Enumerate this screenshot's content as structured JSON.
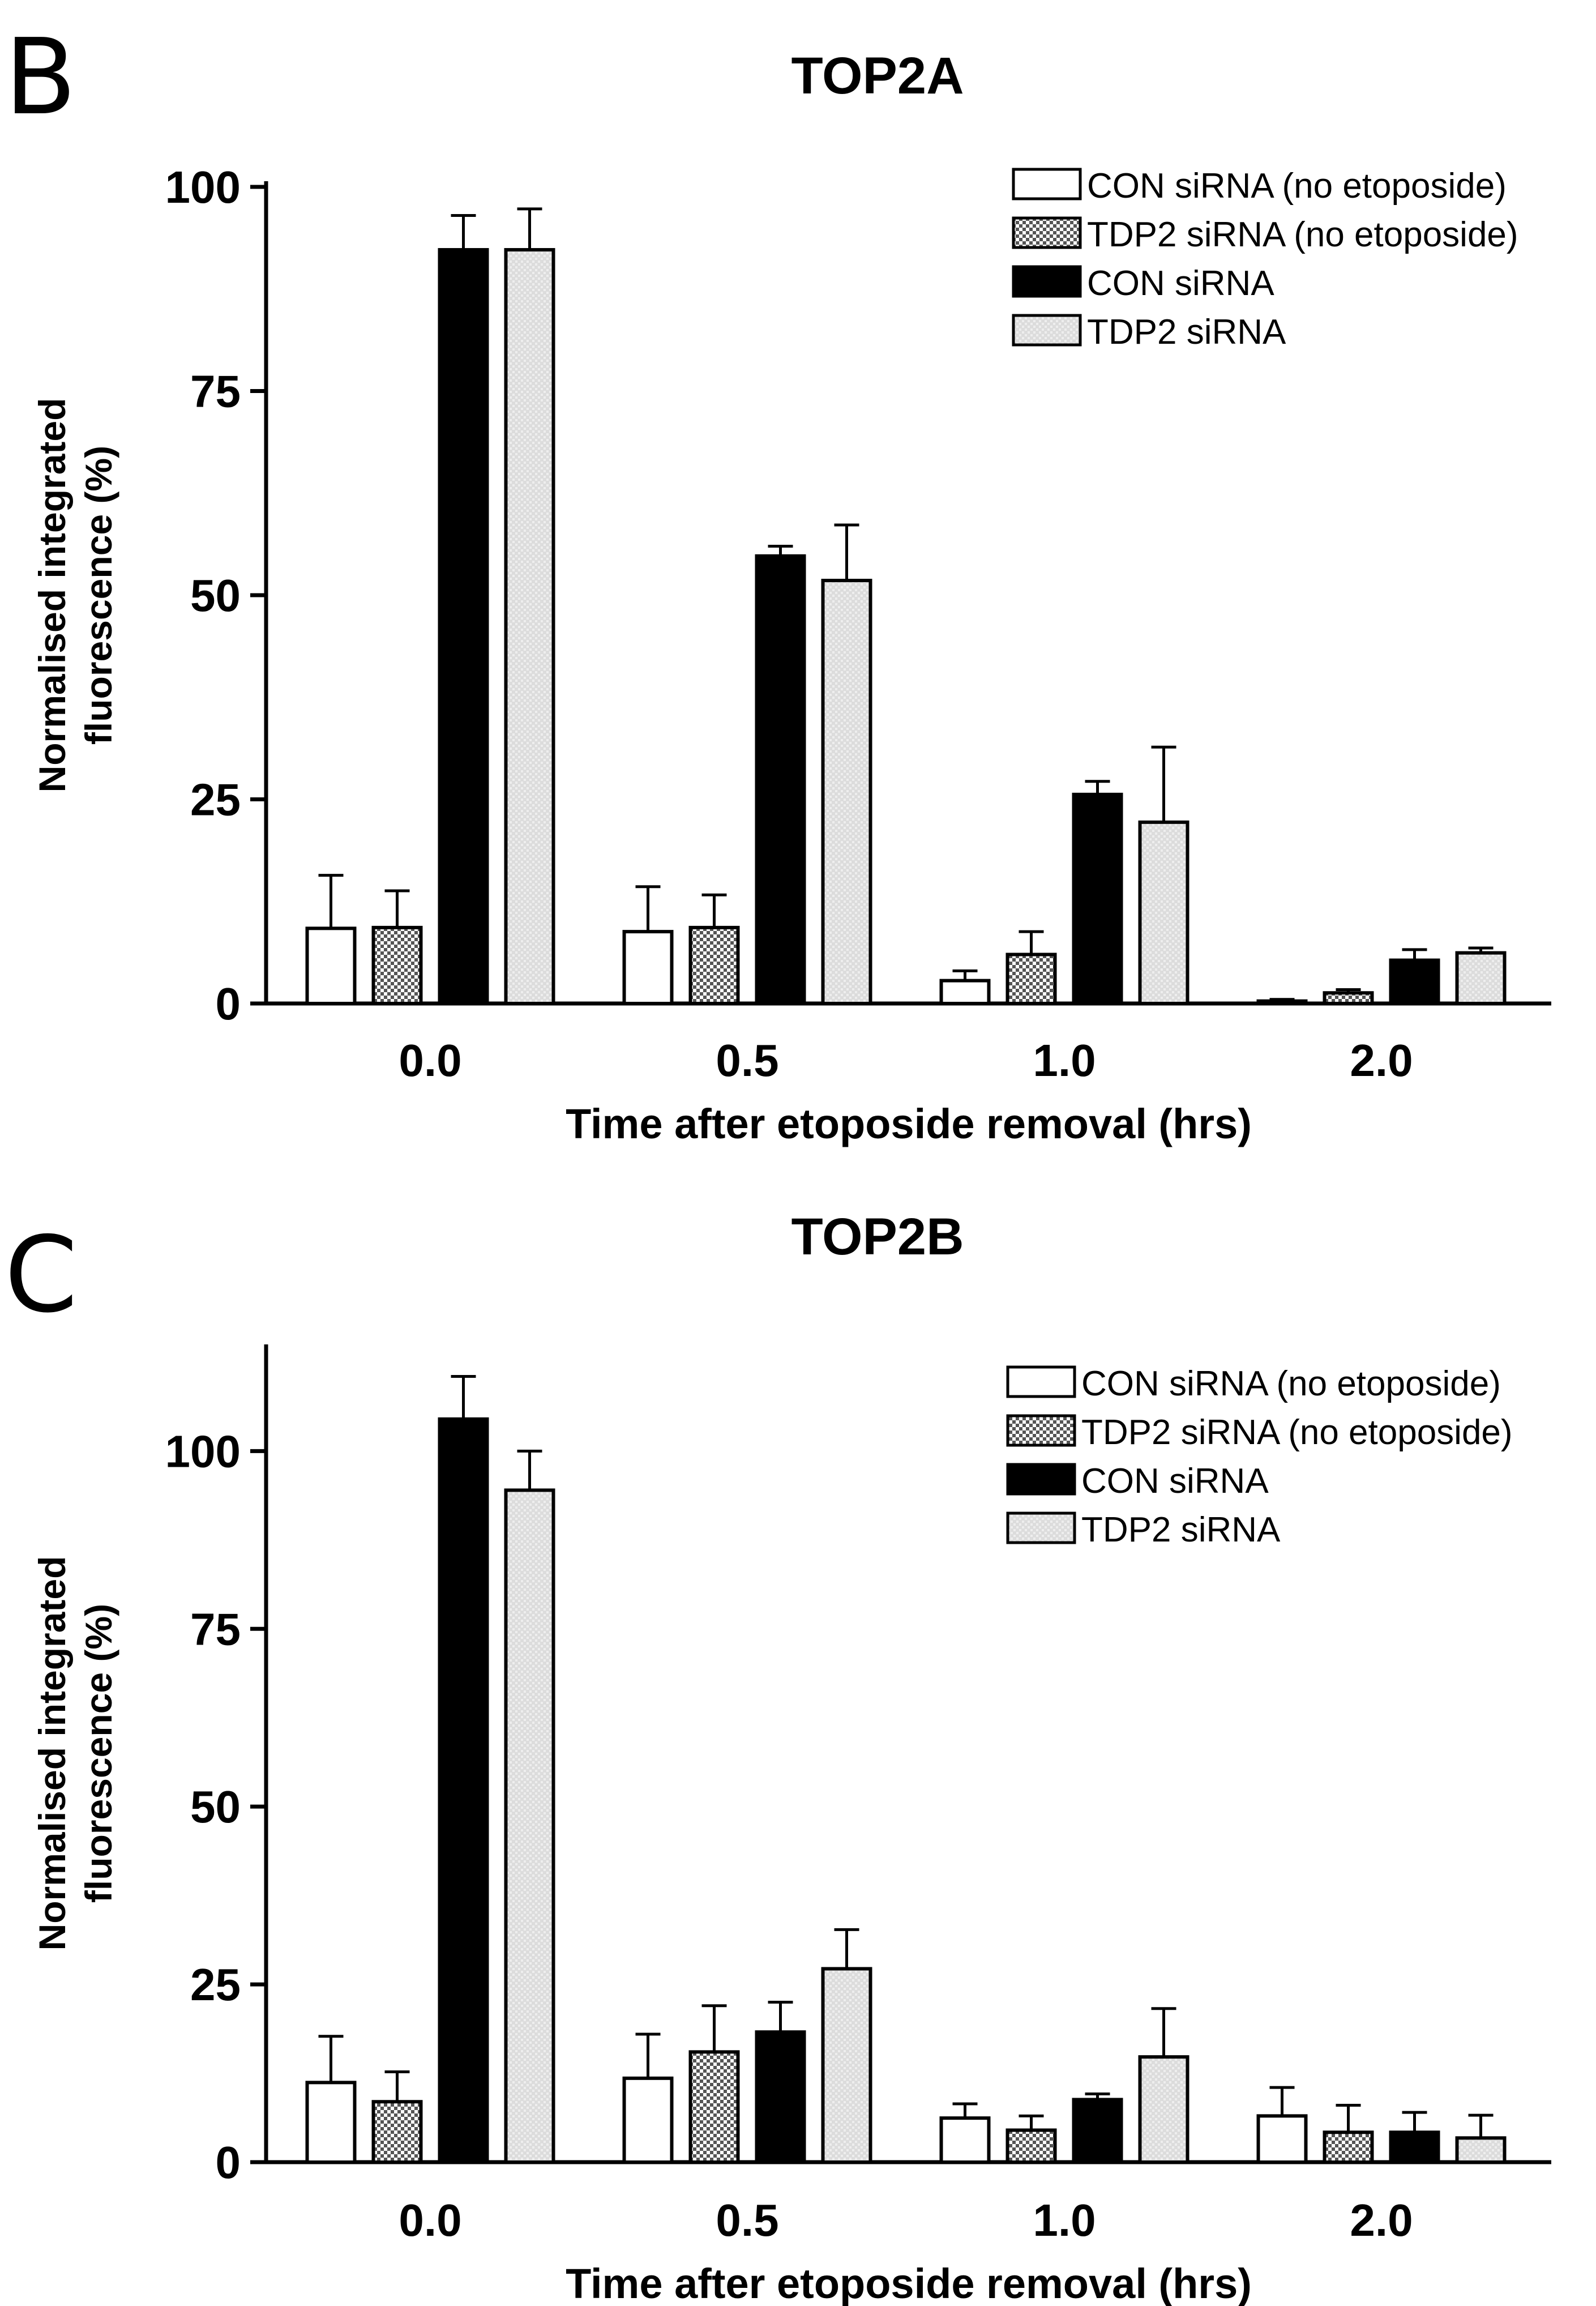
{
  "panels": [
    {
      "letter": "B"
    },
    {
      "letter": "C"
    }
  ],
  "colors": {
    "con_no_etoposide": "#ffffff",
    "tdp2_no_etoposide": "#b0b0b0",
    "con_sirna": "#000000",
    "tdp2_sirna": "#dedede",
    "stroke": "#000000"
  },
  "chart_data": [
    {
      "type": "bar",
      "title": "TOP2A",
      "xlabel": "Time after etoposide removal (hrs)",
      "ylabel_lines": [
        "Normalised integrated",
        "fluorescence (%)"
      ],
      "ylim": [
        0,
        100
      ],
      "yticks": [
        0,
        25,
        50,
        75,
        100
      ],
      "categories": [
        "0.0",
        "0.5",
        "1.0",
        "2.0"
      ],
      "legend_position": "top-right",
      "series": [
        {
          "name": "CON siRNA (no etoposide)",
          "pattern": "white",
          "values": [
            9.2,
            8.8,
            2.8,
            0.3
          ],
          "errors": [
            6.5,
            5.5,
            1.2,
            0.2
          ]
        },
        {
          "name": "TDP2 siRNA (no etoposide)",
          "pattern": "checker",
          "values": [
            9.3,
            9.3,
            6.0,
            1.3
          ],
          "errors": [
            4.5,
            4.0,
            2.8,
            0.4
          ]
        },
        {
          "name": "CON siRNA",
          "pattern": "black",
          "values": [
            92.3,
            54.8,
            25.6,
            5.3
          ],
          "errors": [
            4.2,
            1.2,
            1.6,
            1.3
          ]
        },
        {
          "name": "TDP2 siRNA",
          "pattern": "light",
          "values": [
            92.3,
            51.8,
            22.2,
            6.2
          ],
          "errors": [
            5.0,
            6.8,
            9.2,
            0.6
          ]
        }
      ]
    },
    {
      "type": "bar",
      "title": "TOP2B",
      "xlabel": "Time after etoposide removal (hrs)",
      "ylabel_lines": [
        "Normalised integrated",
        "fluorescence (%)"
      ],
      "ylim": [
        0,
        115
      ],
      "yticks": [
        0,
        25,
        50,
        75,
        100
      ],
      "categories": [
        "0.0",
        "0.5",
        "1.0",
        "2.0"
      ],
      "legend_position": "top-right",
      "series": [
        {
          "name": "CON siRNA (no etoposide)",
          "pattern": "white",
          "values": [
            11.2,
            11.8,
            6.2,
            6.5
          ],
          "errors": [
            6.5,
            6.2,
            2.0,
            4.0
          ]
        },
        {
          "name": "TDP2 siRNA (no etoposide)",
          "pattern": "checker",
          "values": [
            8.5,
            15.5,
            4.5,
            4.2
          ],
          "errors": [
            4.2,
            6.5,
            2.0,
            3.8
          ]
        },
        {
          "name": "CON siRNA",
          "pattern": "black",
          "values": [
            104.5,
            18.3,
            8.8,
            4.2
          ],
          "errors": [
            6.0,
            4.2,
            0.8,
            2.8
          ]
        },
        {
          "name": "TDP2 siRNA",
          "pattern": "light",
          "values": [
            94.5,
            27.2,
            14.8,
            3.4
          ],
          "errors": [
            5.5,
            5.5,
            6.8,
            3.2
          ]
        }
      ]
    }
  ]
}
